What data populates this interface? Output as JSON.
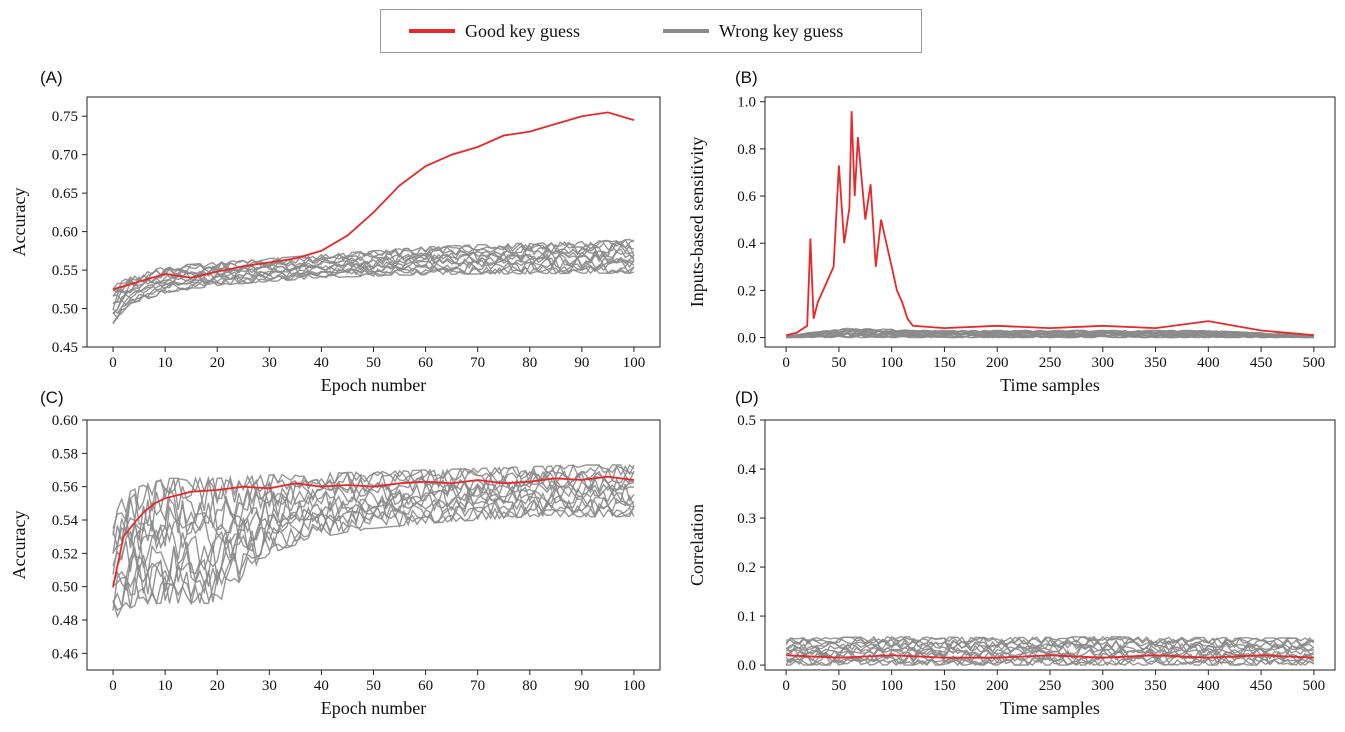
{
  "legend": {
    "good_label": "Good key guess",
    "wrong_label": "Wrong key guess",
    "good_color": "#e8282a",
    "wrong_color": "#8a8a8a"
  },
  "chart_data": [
    {
      "id": "A",
      "panel_label": "(A)",
      "type": "line",
      "xlabel": "Epoch number",
      "ylabel": "Accuracy",
      "xlim": [
        -5,
        105
      ],
      "ylim": [
        0.45,
        0.775
      ],
      "xticks": [
        0,
        10,
        20,
        30,
        40,
        50,
        60,
        70,
        80,
        90,
        100
      ],
      "yticks": [
        0.45,
        0.5,
        0.55,
        0.6,
        0.65,
        0.7,
        0.75
      ],
      "ytick_decimals": 2,
      "wrong_band": {
        "x": [
          0,
          3,
          10,
          20,
          30,
          40,
          50,
          60,
          70,
          80,
          90,
          100
        ],
        "low": [
          0.48,
          0.505,
          0.52,
          0.53,
          0.535,
          0.54,
          0.542,
          0.544,
          0.545,
          0.545,
          0.546,
          0.546
        ],
        "high": [
          0.53,
          0.54,
          0.555,
          0.56,
          0.565,
          0.57,
          0.575,
          0.58,
          0.583,
          0.585,
          0.587,
          0.59
        ]
      },
      "series": [
        {
          "name": "Good key guess",
          "x": [
            0,
            5,
            10,
            15,
            20,
            25,
            30,
            35,
            40,
            45,
            50,
            55,
            60,
            65,
            70,
            75,
            80,
            85,
            90,
            95,
            100
          ],
          "values": [
            0.525,
            0.535,
            0.545,
            0.54,
            0.548,
            0.555,
            0.56,
            0.565,
            0.575,
            0.595,
            0.625,
            0.66,
            0.685,
            0.7,
            0.71,
            0.725,
            0.73,
            0.74,
            0.75,
            0.755,
            0.745
          ]
        }
      ]
    },
    {
      "id": "B",
      "panel_label": "(B)",
      "type": "line",
      "xlabel": "Time samples",
      "ylabel": "Inputs-based sensitivity",
      "xlim": [
        -20,
        520
      ],
      "ylim": [
        -0.04,
        1.02
      ],
      "xticks": [
        0,
        50,
        100,
        150,
        200,
        250,
        300,
        350,
        400,
        450,
        500
      ],
      "yticks": [
        0.0,
        0.2,
        0.4,
        0.6,
        0.8,
        1.0
      ],
      "ytick_decimals": 1,
      "wrong_band": {
        "x": [
          0,
          20,
          60,
          100,
          120,
          200,
          300,
          400,
          500
        ],
        "low": [
          0.0,
          0.0,
          0.0,
          0.0,
          0.0,
          0.0,
          0.0,
          0.0,
          0.0
        ],
        "high": [
          0.005,
          0.02,
          0.04,
          0.035,
          0.03,
          0.03,
          0.03,
          0.03,
          0.01
        ]
      },
      "series": [
        {
          "name": "Good key guess",
          "x": [
            0,
            10,
            20,
            23,
            26,
            30,
            35,
            40,
            45,
            50,
            55,
            60,
            62,
            65,
            68,
            70,
            75,
            80,
            85,
            90,
            95,
            100,
            105,
            110,
            115,
            120,
            150,
            200,
            250,
            300,
            350,
            400,
            450,
            500
          ],
          "values": [
            0.01,
            0.02,
            0.05,
            0.42,
            0.08,
            0.15,
            0.2,
            0.25,
            0.3,
            0.73,
            0.4,
            0.55,
            0.96,
            0.6,
            0.85,
            0.75,
            0.5,
            0.65,
            0.3,
            0.5,
            0.4,
            0.3,
            0.2,
            0.15,
            0.08,
            0.05,
            0.04,
            0.05,
            0.04,
            0.05,
            0.04,
            0.07,
            0.03,
            0.01
          ]
        }
      ]
    },
    {
      "id": "C",
      "panel_label": "(C)",
      "type": "line",
      "xlabel": "Epoch number",
      "ylabel": "Accuracy",
      "xlim": [
        -5,
        105
      ],
      "ylim": [
        0.45,
        0.6
      ],
      "xticks": [
        0,
        10,
        20,
        30,
        40,
        50,
        60,
        70,
        80,
        90,
        100
      ],
      "yticks": [
        0.46,
        0.48,
        0.5,
        0.52,
        0.54,
        0.56,
        0.58,
        0.6
      ],
      "ytick_decimals": 2,
      "wrong_band": {
        "x": [
          0,
          2,
          5,
          10,
          20,
          30,
          40,
          50,
          60,
          70,
          80,
          90,
          100
        ],
        "low": [
          0.48,
          0.485,
          0.49,
          0.49,
          0.49,
          0.52,
          0.53,
          0.535,
          0.538,
          0.54,
          0.542,
          0.542,
          0.542
        ],
        "high": [
          0.54,
          0.555,
          0.56,
          0.565,
          0.565,
          0.567,
          0.568,
          0.569,
          0.57,
          0.571,
          0.572,
          0.573,
          0.573
        ]
      },
      "series": [
        {
          "name": "Good key guess",
          "x": [
            0,
            1,
            2,
            4,
            6,
            8,
            10,
            15,
            20,
            25,
            30,
            35,
            40,
            45,
            50,
            55,
            60,
            65,
            70,
            75,
            80,
            85,
            90,
            95,
            100
          ],
          "values": [
            0.5,
            0.515,
            0.53,
            0.538,
            0.545,
            0.55,
            0.553,
            0.557,
            0.558,
            0.56,
            0.559,
            0.562,
            0.56,
            0.561,
            0.56,
            0.562,
            0.563,
            0.562,
            0.564,
            0.562,
            0.563,
            0.565,
            0.564,
            0.566,
            0.564
          ]
        }
      ]
    },
    {
      "id": "D",
      "panel_label": "(D)",
      "type": "line",
      "xlabel": "Time samples",
      "ylabel": "Correlation",
      "xlim": [
        -20,
        520
      ],
      "ylim": [
        -0.01,
        0.5
      ],
      "xticks": [
        0,
        50,
        100,
        150,
        200,
        250,
        300,
        350,
        400,
        450,
        500
      ],
      "yticks": [
        0.0,
        0.1,
        0.2,
        0.3,
        0.4,
        0.5
      ],
      "ytick_decimals": 1,
      "wrong_band": {
        "x": [
          0,
          100,
          200,
          300,
          400,
          500
        ],
        "low": [
          0.0,
          0.0,
          0.0,
          0.0,
          0.0,
          0.0
        ],
        "high": [
          0.055,
          0.058,
          0.056,
          0.058,
          0.056,
          0.055
        ]
      },
      "series": [
        {
          "name": "Good key guess",
          "x": [
            0,
            50,
            100,
            150,
            200,
            250,
            300,
            350,
            400,
            450,
            500
          ],
          "values": [
            0.02,
            0.015,
            0.02,
            0.015,
            0.015,
            0.02,
            0.015,
            0.02,
            0.015,
            0.02,
            0.015
          ]
        }
      ]
    }
  ]
}
